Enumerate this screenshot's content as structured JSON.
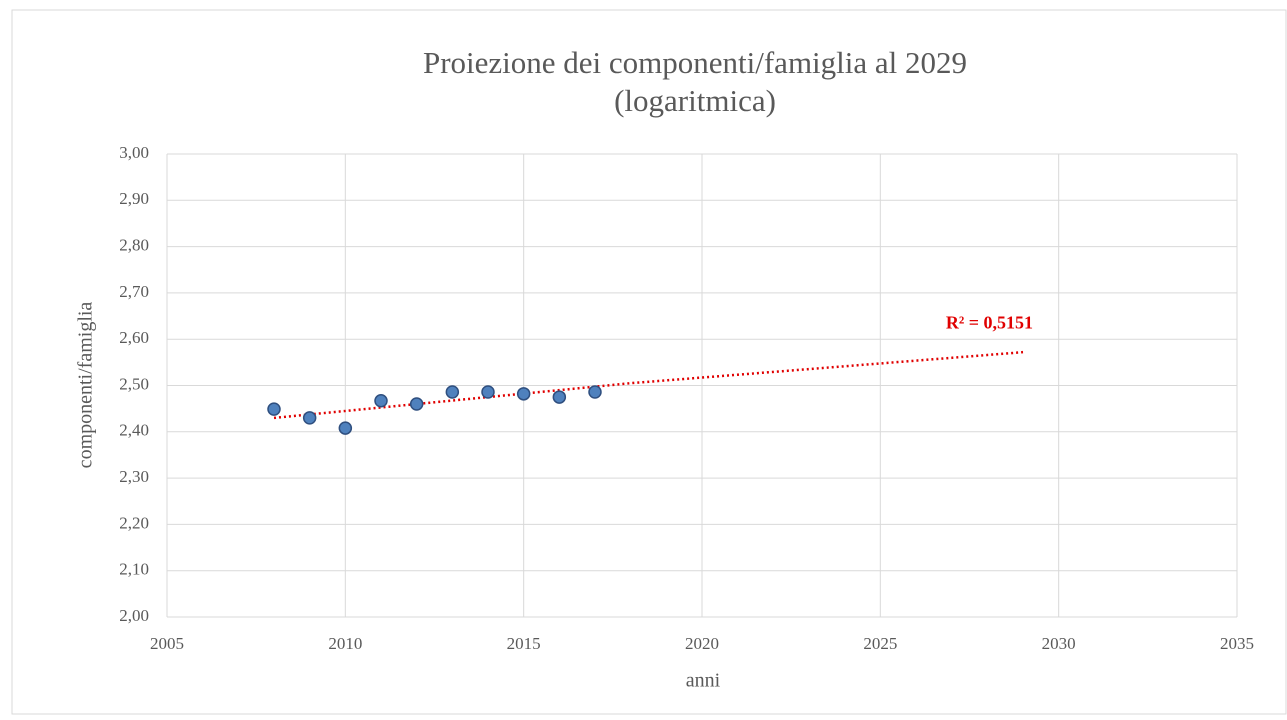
{
  "chart_data": {
    "type": "scatter",
    "title": "Proiezione dei componenti/famiglia al 2029",
    "subtitle": "(logaritmica)",
    "x_label": "anni",
    "y_label": "componenti/famiglia",
    "annotation": "R² = 0,5151",
    "xlim": [
      2005,
      2035
    ],
    "xticks": [
      2005,
      2010,
      2015,
      2020,
      2025,
      2030,
      2035
    ],
    "ylim": [
      2.0,
      3.0
    ],
    "yticks": [
      {
        "value": 2.0,
        "label": "2,00"
      },
      {
        "value": 2.1,
        "label": "2,10"
      },
      {
        "value": 2.2,
        "label": "2,20"
      },
      {
        "value": 2.3,
        "label": "2,30"
      },
      {
        "value": 2.4,
        "label": "2,40"
      },
      {
        "value": 2.5,
        "label": "2,50"
      },
      {
        "value": 2.6,
        "label": "2,60"
      },
      {
        "value": 2.7,
        "label": "2,70"
      },
      {
        "value": 2.8,
        "label": "2,80"
      },
      {
        "value": 2.9,
        "label": "2,90"
      },
      {
        "value": 3.0,
        "label": "3,00"
      }
    ],
    "grid": true,
    "series": [
      {
        "color": "#4f81bd",
        "x": [
          2008,
          2009,
          2010,
          2011,
          2012,
          2013,
          2014,
          2015,
          2016,
          2017
        ],
        "values": [
          2.449,
          2.43,
          2.408,
          2.467,
          2.46,
          2.486,
          2.486,
          2.482,
          2.475,
          2.486
        ]
      }
    ],
    "trendline": {
      "color": "#e00000",
      "x": [
        2008,
        2018,
        2029
      ],
      "values": [
        2.43,
        2.505,
        2.572
      ]
    }
  }
}
